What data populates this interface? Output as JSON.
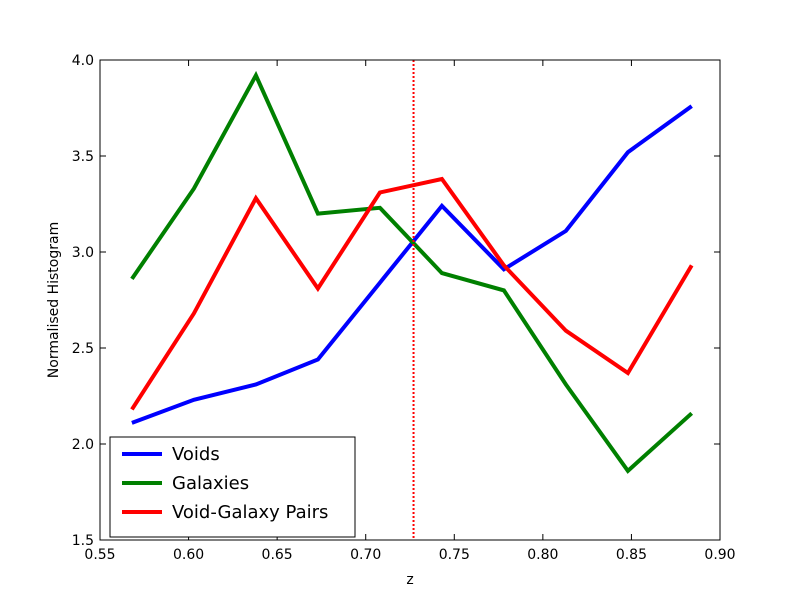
{
  "chart_data": {
    "type": "line",
    "title": "",
    "xlabel": "z",
    "ylabel": "Normalised Histogram",
    "xlim": [
      0.55,
      0.9
    ],
    "ylim": [
      1.5,
      4.0
    ],
    "xticks": [
      "0.55",
      "0.60",
      "0.65",
      "0.70",
      "0.75",
      "0.80",
      "0.85",
      "0.90"
    ],
    "yticks": [
      "1.5",
      "2.0",
      "2.5",
      "3.0",
      "3.5",
      "4.0"
    ],
    "grid": false,
    "legend_position": "lower-left",
    "x": [
      0.568,
      0.603,
      0.638,
      0.673,
      0.708,
      0.743,
      0.778,
      0.813,
      0.848,
      0.884
    ],
    "series": [
      {
        "name": "Voids",
        "color": "#0000ff",
        "values": [
          2.11,
          2.23,
          2.31,
          2.44,
          2.84,
          3.24,
          2.91,
          3.11,
          3.52,
          3.76
        ]
      },
      {
        "name": "Galaxies",
        "color": "#008000",
        "values": [
          2.86,
          3.33,
          3.92,
          3.2,
          3.23,
          2.89,
          2.8,
          2.31,
          1.86,
          2.16
        ]
      },
      {
        "name": "Void-Galaxy Pairs",
        "color": "#ff0000",
        "values": [
          2.18,
          2.68,
          3.28,
          2.81,
          3.31,
          3.38,
          2.93,
          2.59,
          2.37,
          2.93
        ]
      }
    ],
    "vline": {
      "x": 0.727,
      "color": "#ff0000",
      "style": "dotted"
    }
  }
}
